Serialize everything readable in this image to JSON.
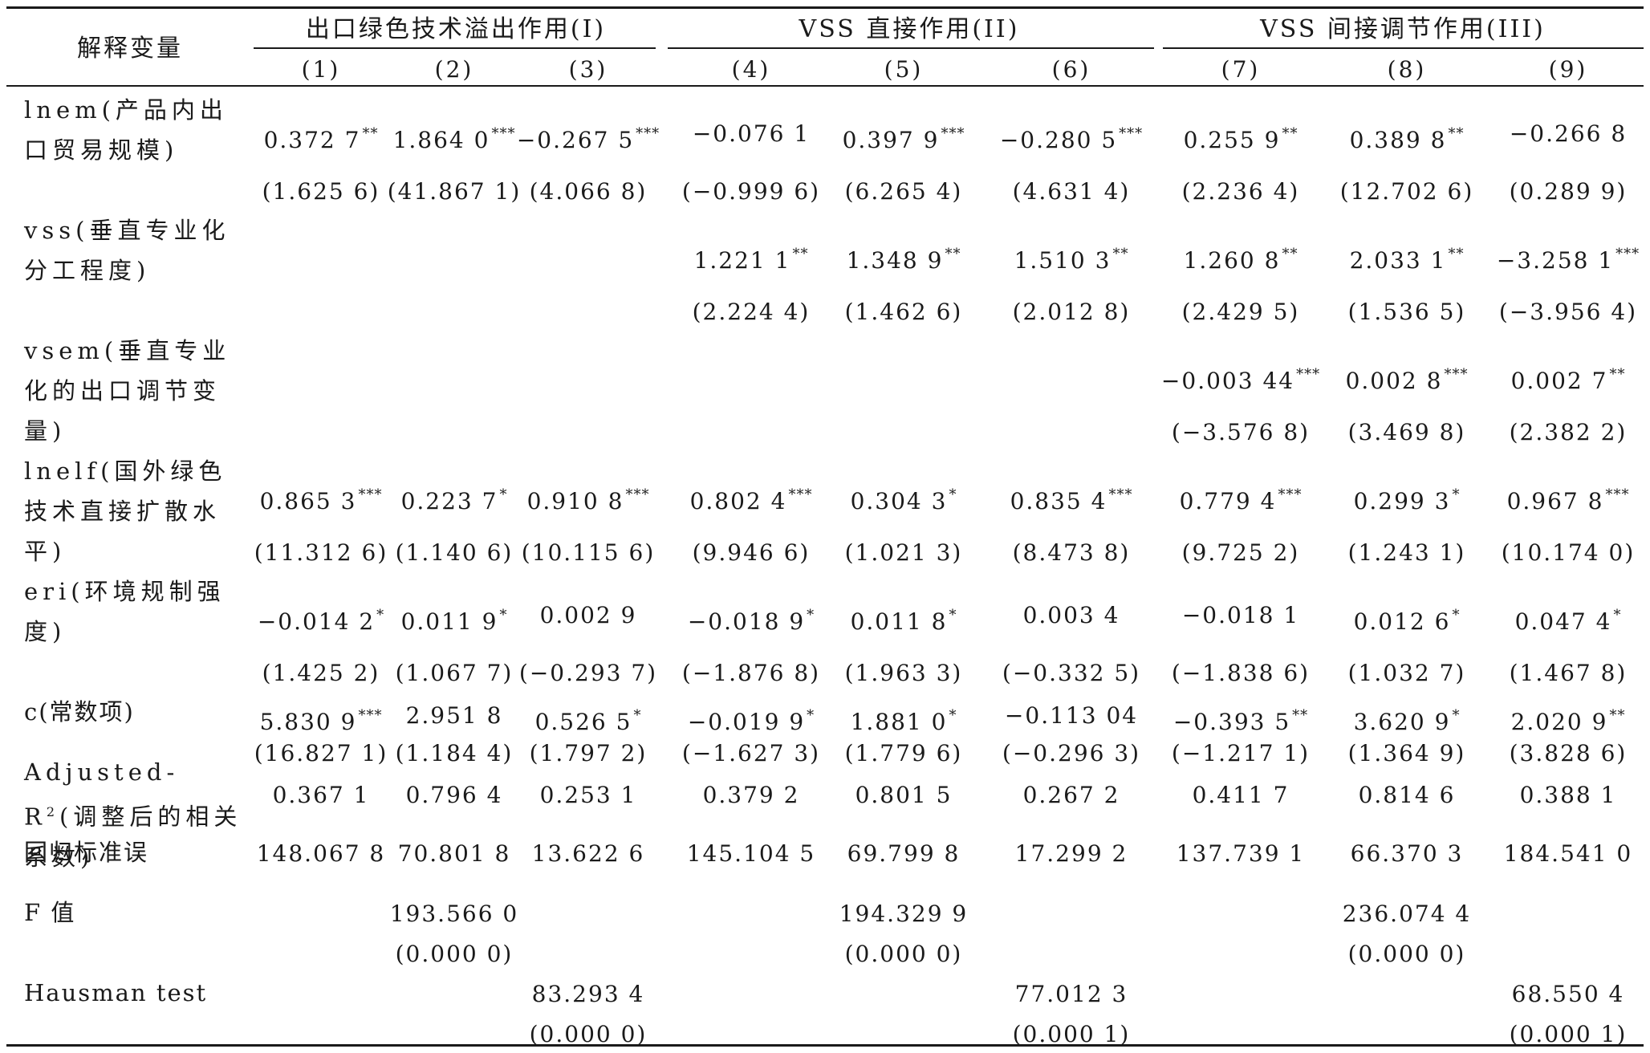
{
  "header": {
    "var_label": "解释变量",
    "groups": [
      "出口绿色技术溢出作用(I)",
      "VSS 直接作用(II)",
      "VSS 间接调节作用(III)"
    ],
    "columns": [
      "(1)",
      "(2)",
      "(3)",
      "(4)",
      "(5)",
      "(6)",
      "(7)",
      "(8)",
      "(9)"
    ]
  },
  "rows": [
    {
      "label": "lnem(产品内出口贸易规模)",
      "coef": [
        {
          "v": "0.372 7",
          "s": "**"
        },
        {
          "v": "1.864 0",
          "s": "***"
        },
        {
          "v": "−0.267 5",
          "s": "***"
        },
        {
          "v": "−0.076 1",
          "s": ""
        },
        {
          "v": "0.397 9",
          "s": "***"
        },
        {
          "v": "−0.280 5",
          "s": "***"
        },
        {
          "v": "0.255 9",
          "s": "**"
        },
        {
          "v": "0.389 8",
          "s": "**"
        },
        {
          "v": "−0.266 8",
          "s": ""
        }
      ],
      "t": [
        "(1.625 6)",
        "(41.867 1)",
        "(4.066 8)",
        "(−0.999 6)",
        "(6.265 4)",
        "(4.631 4)",
        "(2.236 4)",
        "(12.702 6)",
        "(0.289 9)"
      ]
    },
    {
      "label": "vss(垂直专业化分工程度)",
      "coef": [
        null,
        null,
        null,
        {
          "v": "1.221 1",
          "s": "**"
        },
        {
          "v": "1.348 9",
          "s": "**"
        },
        {
          "v": "1.510 3",
          "s": "**"
        },
        {
          "v": "1.260 8",
          "s": "**"
        },
        {
          "v": "2.033 1",
          "s": "**"
        },
        {
          "v": "−3.258 1",
          "s": "***"
        }
      ],
      "t": [
        null,
        null,
        null,
        "(2.224 4)",
        "(1.462 6)",
        "(2.012 8)",
        "(2.429 5)",
        "(1.536 5)",
        "(−3.956 4)"
      ]
    },
    {
      "label": "vsem(垂直专业化的出口调节变量)",
      "coef": [
        null,
        null,
        null,
        null,
        null,
        null,
        {
          "v": "−0.003 44",
          "s": "***"
        },
        {
          "v": "0.002 8",
          "s": "***"
        },
        {
          "v": "0.002 7",
          "s": "**"
        }
      ],
      "t": [
        null,
        null,
        null,
        null,
        null,
        null,
        "(−3.576 8)",
        "(3.469 8)",
        "(2.382 2)"
      ]
    },
    {
      "label": "lnelf(国外绿色技术直接扩散水平)",
      "coef": [
        {
          "v": "0.865 3",
          "s": "***"
        },
        {
          "v": "0.223 7",
          "s": "*"
        },
        {
          "v": "0.910 8",
          "s": "***"
        },
        {
          "v": "0.802 4",
          "s": "***"
        },
        {
          "v": "0.304 3",
          "s": "*"
        },
        {
          "v": "0.835 4",
          "s": "***"
        },
        {
          "v": "0.779 4",
          "s": "***"
        },
        {
          "v": "0.299 3",
          "s": "*"
        },
        {
          "v": "0.967 8",
          "s": "***"
        }
      ],
      "t": [
        "(11.312 6)",
        "(1.140 6)",
        "(10.115 6)",
        "(9.946 6)",
        "(1.021 3)",
        "(8.473 8)",
        "(9.725 2)",
        "(1.243 1)",
        "(10.174 0)"
      ]
    },
    {
      "label": "eri(环境规制强度)",
      "coef": [
        {
          "v": "−0.014 2",
          "s": "*"
        },
        {
          "v": "0.011 9",
          "s": "*"
        },
        {
          "v": "0.002 9",
          "s": ""
        },
        {
          "v": "−0.018 9",
          "s": "*"
        },
        {
          "v": "0.011 8",
          "s": "*"
        },
        {
          "v": "0.003 4",
          "s": ""
        },
        {
          "v": "−0.018 1",
          "s": ""
        },
        {
          "v": "0.012 6",
          "s": "*"
        },
        {
          "v": "0.047 4",
          "s": "*"
        }
      ],
      "t": [
        "(1.425 2)",
        "(1.067 7)",
        "(−0.293 7)",
        "(−1.876 8)",
        "(1.963 3)",
        "(−0.332 5)",
        "(−1.838 6)",
        "(1.032 7)",
        "(1.467 8)"
      ]
    },
    {
      "label": "c(常数项)",
      "coef": [
        {
          "v": "5.830 9",
          "s": "***"
        },
        {
          "v": "2.951 8",
          "s": ""
        },
        {
          "v": "0.526 5",
          "s": "*"
        },
        {
          "v": "−0.019 9",
          "s": "*"
        },
        {
          "v": "1.881 0",
          "s": "*"
        },
        {
          "v": "−0.113 04",
          "s": ""
        },
        {
          "v": "−0.393 5",
          "s": "**"
        },
        {
          "v": "3.620 9",
          "s": "*"
        },
        {
          "v": "2.020 9",
          "s": "**"
        }
      ],
      "t": [
        "(16.827 1)",
        "(1.184 4)",
        "(1.797 2)",
        "(−1.627 3)",
        "(1.779 6)",
        "(−0.296 3)",
        "(−1.217 1)",
        "(1.364 9)",
        "(3.828 6)"
      ]
    }
  ],
  "adj_r2": {
    "label_pre": "Adjusted-R",
    "label_sup": "2",
    "label_post": "(调整后的相关系数)",
    "values": [
      "0.367 1",
      "0.796 4",
      "0.253 1",
      "0.379 2",
      "0.801 5",
      "0.267 2",
      "0.411 7",
      "0.814 6",
      "0.388 1"
    ]
  },
  "se": {
    "label": "回归标准误",
    "values": [
      "148.067 8",
      "70.801 8",
      "13.622 6",
      "145.104 5",
      "69.799 8",
      "17.299 2",
      "137.739 1",
      "66.370 3",
      "184.541 0"
    ]
  },
  "f_value": {
    "label": "F 值",
    "values": [
      "193.566 0",
      "194.329 9",
      "236.074 4"
    ],
    "p": [
      "(0.000 0)",
      "(0.000 0)",
      "(0.000 0)"
    ]
  },
  "hausman": {
    "label": "Hausman test",
    "values": [
      "83.293 4",
      "77.012 3",
      "68.550 4"
    ],
    "p": [
      "(0.000 0)",
      "(0.000 1)",
      "(0.000 1)"
    ]
  }
}
